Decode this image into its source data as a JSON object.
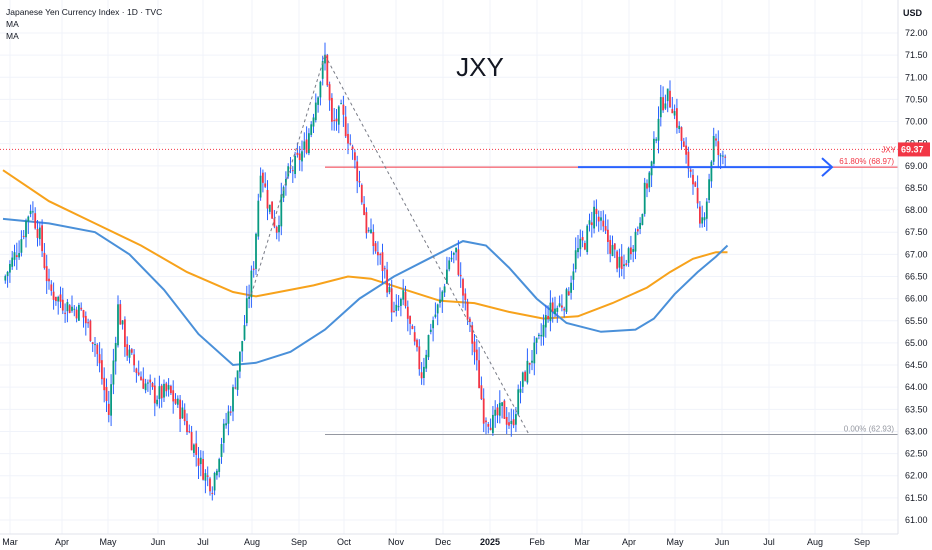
{
  "legend": {
    "symbol_line": "Japanese Yen Currency Index · 1D · TVC",
    "indicators": [
      "MA",
      "MA"
    ]
  },
  "chart_data": {
    "type": "candlestick",
    "title": "JXY",
    "currency": "USD",
    "ylim": [
      61.0,
      72.0
    ],
    "y_ticks": [
      "72.00",
      "71.50",
      "71.00",
      "70.50",
      "70.00",
      "69.50",
      "69.00",
      "68.50",
      "68.00",
      "67.50",
      "67.00",
      "66.50",
      "66.00",
      "65.50",
      "65.00",
      "64.50",
      "64.00",
      "63.50",
      "63.00",
      "62.50",
      "62.00",
      "61.50",
      "61.00"
    ],
    "x_ticks": [
      "Mar",
      "Apr",
      "May",
      "Jun",
      "Jul",
      "Aug",
      "Sep",
      "Oct",
      "Nov",
      "Dec",
      "2025",
      "Feb",
      "Mar",
      "Apr",
      "May",
      "Jun",
      "Jul",
      "Aug",
      "Sep"
    ],
    "last_price": {
      "symbol": "JXY",
      "value": 69.37
    },
    "fib_levels": [
      {
        "label": "61.80% (68.97)",
        "value": 68.97
      },
      {
        "label": "0.00% (62.93)",
        "value": 62.93
      }
    ],
    "close_path": [
      {
        "t": 0,
        "v": 66.4
      },
      {
        "t": 7,
        "v": 67.2
      },
      {
        "t": 12,
        "v": 68.1
      },
      {
        "t": 16,
        "v": 67.4
      },
      {
        "t": 20,
        "v": 66.2
      },
      {
        "t": 26,
        "v": 65.9
      },
      {
        "t": 34,
        "v": 65.7
      },
      {
        "t": 40,
        "v": 65.0
      },
      {
        "t": 46,
        "v": 63.4
      },
      {
        "t": 50,
        "v": 65.8
      },
      {
        "t": 54,
        "v": 64.8
      },
      {
        "t": 60,
        "v": 64.2
      },
      {
        "t": 66,
        "v": 63.8
      },
      {
        "t": 72,
        "v": 63.9
      },
      {
        "t": 78,
        "v": 63.4
      },
      {
        "t": 84,
        "v": 62.5
      },
      {
        "t": 88,
        "v": 62.0
      },
      {
        "t": 91,
        "v": 61.8
      },
      {
        "t": 95,
        "v": 62.8
      },
      {
        "t": 99,
        "v": 63.6
      },
      {
        "t": 103,
        "v": 64.7
      },
      {
        "t": 106,
        "v": 65.8
      },
      {
        "t": 109,
        "v": 66.8
      },
      {
        "t": 112,
        "v": 69.0
      },
      {
        "t": 115,
        "v": 68.2
      },
      {
        "t": 119,
        "v": 67.6
      },
      {
        "t": 123,
        "v": 68.7
      },
      {
        "t": 128,
        "v": 69.1
      },
      {
        "t": 132,
        "v": 69.5
      },
      {
        "t": 136,
        "v": 70.5
      },
      {
        "t": 140,
        "v": 71.45
      },
      {
        "t": 143,
        "v": 69.9
      },
      {
        "t": 147,
        "v": 70.2
      },
      {
        "t": 151,
        "v": 69.5
      },
      {
        "t": 155,
        "v": 68.6
      },
      {
        "t": 158,
        "v": 67.6
      },
      {
        "t": 162,
        "v": 67.1
      },
      {
        "t": 166,
        "v": 66.6
      },
      {
        "t": 170,
        "v": 65.6
      },
      {
        "t": 174,
        "v": 66.0
      },
      {
        "t": 178,
        "v": 65.1
      },
      {
        "t": 182,
        "v": 64.3
      },
      {
        "t": 186,
        "v": 65.4
      },
      {
        "t": 190,
        "v": 65.9
      },
      {
        "t": 194,
        "v": 66.9
      },
      {
        "t": 197,
        "v": 67.0
      },
      {
        "t": 201,
        "v": 65.8
      },
      {
        "t": 205,
        "v": 64.8
      },
      {
        "t": 209,
        "v": 63.4
      },
      {
        "t": 213,
        "v": 63.2
      },
      {
        "t": 217,
        "v": 63.5
      },
      {
        "t": 221,
        "v": 63.1
      },
      {
        "t": 225,
        "v": 64.0
      },
      {
        "t": 229,
        "v": 64.6
      },
      {
        "t": 233,
        "v": 65.0
      },
      {
        "t": 237,
        "v": 65.7
      },
      {
        "t": 241,
        "v": 65.8
      },
      {
        "t": 245,
        "v": 66.0
      },
      {
        "t": 249,
        "v": 67.0
      },
      {
        "t": 253,
        "v": 67.3
      },
      {
        "t": 257,
        "v": 68.0
      },
      {
        "t": 261,
        "v": 67.5
      },
      {
        "t": 265,
        "v": 67.1
      },
      {
        "t": 269,
        "v": 66.6
      },
      {
        "t": 273,
        "v": 67.2
      },
      {
        "t": 276,
        "v": 67.6
      },
      {
        "t": 279,
        "v": 68.4
      },
      {
        "t": 282,
        "v": 69.0
      },
      {
        "t": 285,
        "v": 70.2
      },
      {
        "t": 288,
        "v": 70.6
      },
      {
        "t": 291,
        "v": 70.4
      },
      {
        "t": 294,
        "v": 69.8
      },
      {
        "t": 297,
        "v": 69.1
      },
      {
        "t": 300,
        "v": 68.8
      },
      {
        "t": 303,
        "v": 67.5
      },
      {
        "t": 306,
        "v": 68.3
      },
      {
        "t": 309,
        "v": 69.6
      },
      {
        "t": 312,
        "v": 69.1
      },
      {
        "t": 314,
        "v": 69.37
      }
    ],
    "series": [
      {
        "name": "MA",
        "color": "#f7a21b",
        "points": [
          {
            "t": 0,
            "v": 68.9
          },
          {
            "t": 20,
            "v": 68.2
          },
          {
            "t": 40,
            "v": 67.7
          },
          {
            "t": 60,
            "v": 67.2
          },
          {
            "t": 80,
            "v": 66.6
          },
          {
            "t": 100,
            "v": 66.15
          },
          {
            "t": 110,
            "v": 66.05
          },
          {
            "t": 120,
            "v": 66.15
          },
          {
            "t": 135,
            "v": 66.3
          },
          {
            "t": 150,
            "v": 66.5
          },
          {
            "t": 160,
            "v": 66.45
          },
          {
            "t": 175,
            "v": 66.2
          },
          {
            "t": 190,
            "v": 65.95
          },
          {
            "t": 205,
            "v": 65.9
          },
          {
            "t": 220,
            "v": 65.7
          },
          {
            "t": 235,
            "v": 65.55
          },
          {
            "t": 250,
            "v": 65.6
          },
          {
            "t": 265,
            "v": 65.9
          },
          {
            "t": 280,
            "v": 66.25
          },
          {
            "t": 290,
            "v": 66.6
          },
          {
            "t": 300,
            "v": 66.9
          },
          {
            "t": 310,
            "v": 67.05
          },
          {
            "t": 315,
            "v": 67.05
          }
        ]
      },
      {
        "name": "MA",
        "color": "#4a90d9",
        "points": [
          {
            "t": 0,
            "v": 67.8
          },
          {
            "t": 20,
            "v": 67.7
          },
          {
            "t": 40,
            "v": 67.5
          },
          {
            "t": 55,
            "v": 67.0
          },
          {
            "t": 70,
            "v": 66.2
          },
          {
            "t": 85,
            "v": 65.2
          },
          {
            "t": 100,
            "v": 64.5
          },
          {
            "t": 110,
            "v": 64.55
          },
          {
            "t": 125,
            "v": 64.8
          },
          {
            "t": 140,
            "v": 65.3
          },
          {
            "t": 155,
            "v": 66.0
          },
          {
            "t": 170,
            "v": 66.5
          },
          {
            "t": 185,
            "v": 66.9
          },
          {
            "t": 200,
            "v": 67.3
          },
          {
            "t": 210,
            "v": 67.2
          },
          {
            "t": 220,
            "v": 66.7
          },
          {
            "t": 232,
            "v": 66.0
          },
          {
            "t": 245,
            "v": 65.45
          },
          {
            "t": 260,
            "v": 65.25
          },
          {
            "t": 275,
            "v": 65.3
          },
          {
            "t": 283,
            "v": 65.55
          },
          {
            "t": 292,
            "v": 66.1
          },
          {
            "t": 302,
            "v": 66.6
          },
          {
            "t": 310,
            "v": 66.95
          },
          {
            "t": 315,
            "v": 67.2
          }
        ]
      }
    ],
    "annotations": {
      "blue_level": 68.97,
      "fib_swing": {
        "high": {
          "t": 140,
          "v": 71.5
        },
        "low": {
          "t": 220,
          "v": 62.93
        }
      },
      "uptrend": {
        "from": {
          "t": 108,
          "v": 66.1
        },
        "to": {
          "t": 140,
          "v": 71.5
        }
      }
    },
    "colors": {
      "up": "#089981",
      "down": "#f23645",
      "wick": "#2962ff",
      "fib_red": "#f23645",
      "blue_line": "#2962ff",
      "grid": "#f0f3fa"
    }
  }
}
